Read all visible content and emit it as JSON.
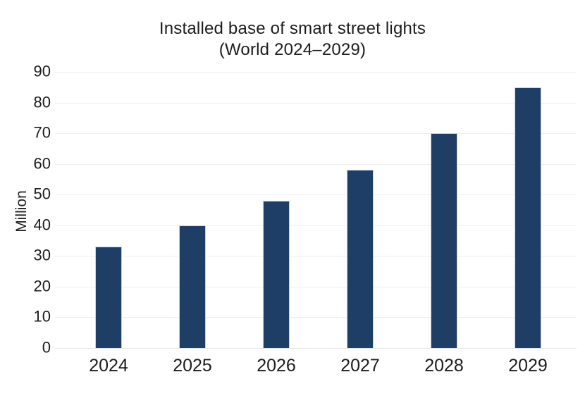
{
  "chart_data": {
    "type": "bar",
    "title": "Installed base of smart street lights",
    "subtitle": "(World 2024–2029)",
    "ylabel": "Million",
    "xlabel": "",
    "categories": [
      "2024",
      "2025",
      "2026",
      "2027",
      "2028",
      "2029"
    ],
    "values": [
      33,
      40,
      48,
      58,
      70,
      85
    ],
    "ylim": [
      0,
      90
    ],
    "yticks": [
      0,
      10,
      20,
      30,
      40,
      50,
      60,
      70,
      80,
      90
    ],
    "grid": "horizontal",
    "legend": "none",
    "bar_color": "#1f3e66",
    "grid_color": "#efefef",
    "text_color": "#1c1c1c",
    "background": "#ffffff"
  }
}
